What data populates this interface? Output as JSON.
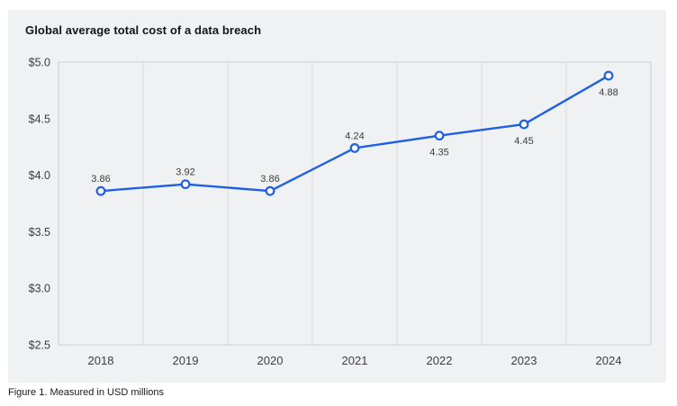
{
  "header": {
    "title": "Global average total cost of a data breach"
  },
  "caption": "Figure 1. Measured in USD millions",
  "colors": {
    "accent_line": "#1e5fe6",
    "marker_fill": "#ffffff",
    "panel_background": "#f0f1f2",
    "gridline": "#d8dadd",
    "plot_border": "#ccd1d7",
    "text_primary": "#141414",
    "text_axis": "#3d3d3d"
  },
  "chart_data": {
    "type": "line",
    "title": "Global average total cost of a data breach",
    "categories": [
      "2018",
      "2019",
      "2020",
      "2021",
      "2022",
      "2023",
      "2024"
    ],
    "series": [
      {
        "name": "Global average total cost of a data breach (USD millions)",
        "values": [
          3.86,
          3.92,
          3.86,
          4.24,
          4.35,
          4.45,
          4.88
        ]
      }
    ],
    "point_labels": [
      "3.86",
      "3.92",
      "3.86",
      "4.24",
      "4.35",
      "4.45",
      "4.88"
    ],
    "point_label_positions": [
      "above",
      "above",
      "above",
      "above",
      "below",
      "below",
      "below"
    ],
    "y_axis": [
      {
        "label": "$5.0",
        "value": 5.0
      },
      {
        "label": "$4.5",
        "value": 4.5
      },
      {
        "label": "$4.0",
        "value": 4.0
      },
      {
        "label": "$3.5",
        "value": 3.5
      },
      {
        "label": "$3.0",
        "value": 3.0
      },
      {
        "label": "$2.5",
        "value": 2.5
      }
    ],
    "ylim": [
      2.5,
      5.0
    ],
    "xlabel": "",
    "ylabel": "",
    "unit": "USD millions",
    "grid": "vertical",
    "legend": "none"
  }
}
